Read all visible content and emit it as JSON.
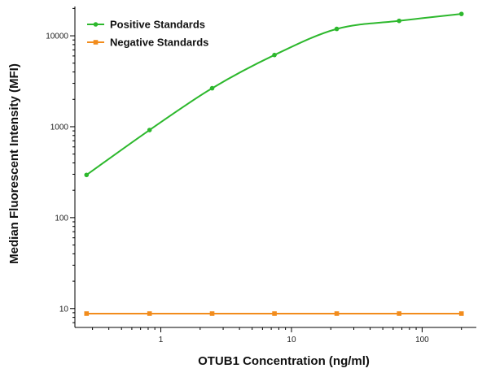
{
  "chart_data": {
    "type": "line",
    "title": "",
    "xlabel": "OTUB1 Concentration (ng/ml)",
    "ylabel": "Median Fluorescent Intensity (MFI)",
    "x_scale": "log",
    "y_scale": "log",
    "xlim": [
      0.22,
      260
    ],
    "ylim": [
      6.2,
      21000
    ],
    "x_ticks": [
      {
        "value": 1,
        "label": "1"
      },
      {
        "value": 10,
        "label": "10"
      },
      {
        "value": 100,
        "label": "100"
      }
    ],
    "y_ticks": [
      {
        "value": 10,
        "label": "10"
      },
      {
        "value": 100,
        "label": "100"
      },
      {
        "value": 1000,
        "label": "1000"
      },
      {
        "value": 10000,
        "label": "10000"
      }
    ],
    "grid": false,
    "legend_position": "top-left",
    "series": [
      {
        "name": "Positive Standards",
        "color": "#2db82d",
        "marker": "circle",
        "x": [
          0.27,
          0.82,
          2.47,
          7.41,
          22.2,
          66.7,
          200
        ],
        "y": [
          295,
          920,
          2650,
          6150,
          11900,
          14600,
          17400
        ]
      },
      {
        "name": "Negative Standards",
        "color": "#f28c1c",
        "marker": "square",
        "x": [
          0.27,
          0.82,
          2.47,
          7.41,
          22.2,
          66.7,
          200
        ],
        "y": [
          8.8,
          8.8,
          8.8,
          8.8,
          8.8,
          8.8,
          8.8
        ]
      }
    ]
  }
}
